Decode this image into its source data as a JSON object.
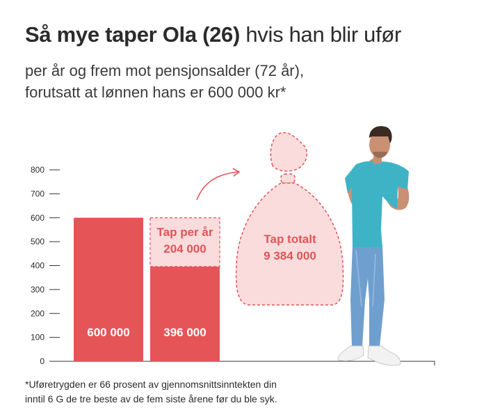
{
  "title": {
    "bold": "Så mye taper Ola (26)",
    "regular": "hvis han blir ufør"
  },
  "subtitle": {
    "line1": "per år og frem mot pensjonsalder (72 år),",
    "line2": "forutsatt at lønnen hans er 600 000 kr*"
  },
  "footnote": {
    "line1": "*Uføretrygden er 66 prosent av gjennomsnittsinntekten din",
    "line2": "inntil 6 G de tre beste av de fem siste årene før du ble syk."
  },
  "colors": {
    "bar": "#e55457",
    "loss_fill": "#fbdcdc",
    "loss_stroke": "#e05458",
    "axis": "#333333"
  },
  "chart_data": {
    "type": "bar",
    "ylim": [
      0,
      800
    ],
    "yticks": [
      0,
      100,
      200,
      300,
      400,
      500,
      600,
      700,
      800
    ],
    "bars": [
      {
        "value": 600,
        "label": "600 000"
      },
      {
        "value": 396,
        "label": "396 000",
        "loss": 204,
        "loss_label_line1": "Tap per år",
        "loss_label_line2": "204 000"
      }
    ],
    "total_loss": {
      "line1": "Tap totalt",
      "line2": "9 384 000"
    }
  }
}
